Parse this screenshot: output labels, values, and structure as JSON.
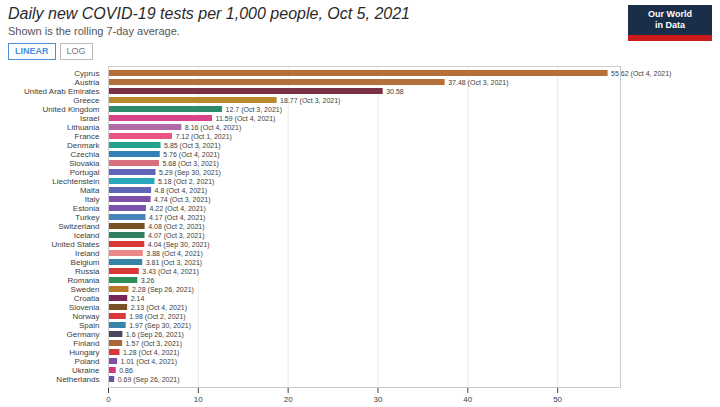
{
  "chart_data": {
    "type": "bar",
    "orientation": "horizontal",
    "title": "Daily new COVID-19 tests per 1,000 people, Oct 5, 2021",
    "subtitle": "Shown is the rolling 7-day average.",
    "annotations": [
      "LINEAR",
      "LOG",
      "Our World",
      "in Data"
    ],
    "categories": [
      "Cyprus",
      "Austria",
      "United Arab Emirates",
      "Greece",
      "United Kingdom",
      "Israel",
      "Lithuania",
      "France",
      "Denmark",
      "Czechia",
      "Slovakia",
      "Portugal",
      "Liechtenstein",
      "Malta",
      "Italy",
      "Estonia",
      "Turkey",
      "Switzerland",
      "Iceland",
      "United States",
      "Ireland",
      "Belgium",
      "Russia",
      "Romania",
      "Sweden",
      "Croatia",
      "Slovenia",
      "Norway",
      "Spain",
      "Germany",
      "Finland",
      "Hungary",
      "Poland",
      "Ukraine",
      "Netherlands"
    ],
    "values": [
      55.62,
      37.48,
      30.58,
      18.77,
      12.7,
      11.59,
      8.16,
      7.12,
      5.85,
      5.76,
      5.68,
      5.29,
      5.18,
      4.8,
      4.74,
      4.22,
      4.17,
      4.08,
      4.07,
      4.04,
      3.88,
      3.81,
      3.43,
      3.26,
      2.28,
      2.14,
      2.13,
      1.98,
      1.97,
      1.6,
      1.57,
      1.28,
      1.01,
      0.86,
      0.69
    ],
    "value_labels": [
      "55.62 (Oct 4, 2021)",
      "37.48 (Oct 3, 2021)",
      "30.58",
      "18.77 (Oct 3, 2021)",
      "12.7 (Oct 3, 2021)",
      "11.59 (Oct 4, 2021)",
      "8.16 (Oct 4, 2021)",
      "7.12 (Oct 1, 2021)",
      "5.85 (Oct 3, 2021)",
      "5.76 (Oct 4, 2021)",
      "5.68 (Oct 3, 2021)",
      "5.29 (Sep 30, 2021)",
      "5.18 (Oct 2, 2021)",
      "4.8 (Oct 4, 2021)",
      "4.74 (Oct 3, 2021)",
      "4.22 (Oct 4, 2021)",
      "4.17 (Oct 4, 2021)",
      "4.08 (Oct 2, 2021)",
      "4.07 (Oct 3, 2021)",
      "4.04 (Sep 30, 2021)",
      "3.88 (Oct 4, 2021)",
      "3.81 (Oct 3, 2021)",
      "3.43 (Oct 4, 2021)",
      "3.26",
      "2.28 (Sep 26, 2021)",
      "2.14",
      "2.13 (Oct 4, 2021)",
      "1.98 (Oct 2, 2021)",
      "1.97 (Sep 30, 2021)",
      "1.6 (Sep 26, 2021)",
      "1.57 (Oct 3, 2021)",
      "1.28 (Oct 4, 2021)",
      "1.01 (Oct 4, 2021)",
      "0.86",
      "0.69 (Sep 26, 2021)"
    ],
    "colors": [
      "#b5703a",
      "#b5703a",
      "#7a3045",
      "#b8892e",
      "#2e8b6a",
      "#d94488",
      "#b06aaa",
      "#e85585",
      "#26a090",
      "#3480b8",
      "#d97080",
      "#6065b8",
      "#28a8bc",
      "#6065b8",
      "#8050a8",
      "#7855a8",
      "#4585b8",
      "#7a5025",
      "#2e8060",
      "#d83838",
      "#e88888",
      "#3585a8",
      "#d83838",
      "#2e9058",
      "#b87828",
      "#782858",
      "#7a5025",
      "#d83838",
      "#3585a8",
      "#484860",
      "#a86838",
      "#d83838",
      "#8050a8",
      "#d83878",
      "#605898"
    ],
    "xlim": [
      0,
      57
    ],
    "xticks": [
      0,
      10,
      20,
      30,
      40,
      50
    ],
    "grid": true,
    "data_labels": true
  }
}
